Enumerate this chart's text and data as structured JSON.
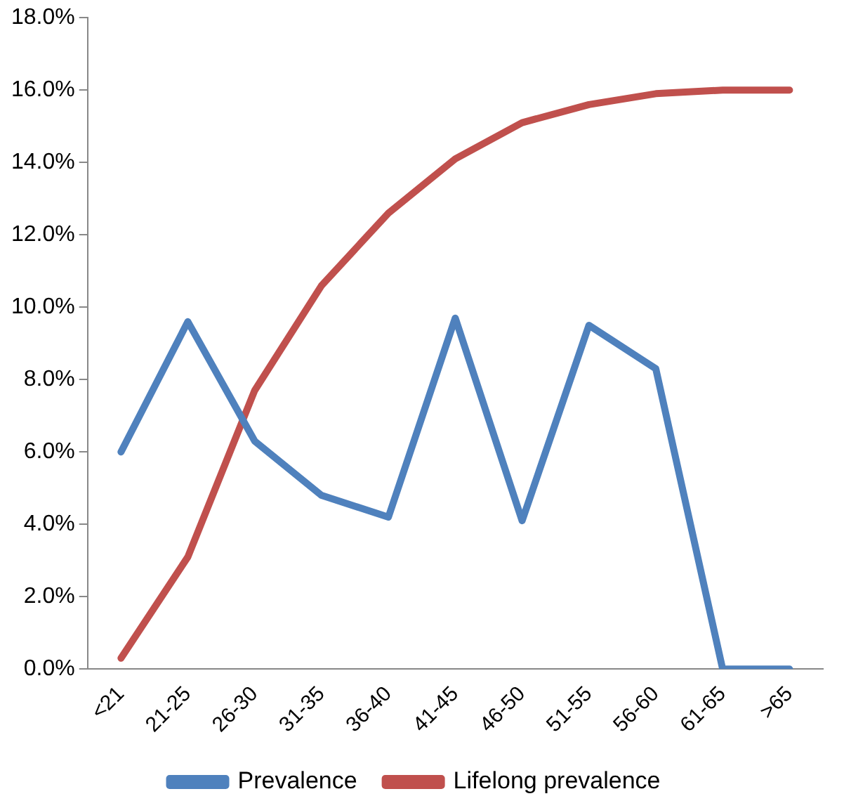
{
  "chart_data": {
    "type": "line",
    "categories": [
      "<21",
      "21-25",
      "26-30",
      "31-35",
      "36-40",
      "41-45",
      "46-50",
      "51-55",
      "56-60",
      "61-65",
      ">65"
    ],
    "series": [
      {
        "name": "Prevalence",
        "color": "#4f81bd",
        "values": [
          6.0,
          9.6,
          6.3,
          4.8,
          4.2,
          9.7,
          4.1,
          9.5,
          8.3,
          0,
          0
        ]
      },
      {
        "name": "Lifelong prevalence",
        "color": "#c0504d",
        "values": [
          0.3,
          3.1,
          7.7,
          10.6,
          12.6,
          14.1,
          15.1,
          15.6,
          15.9,
          16.0,
          16.0
        ]
      }
    ],
    "ylim": [
      0,
      18
    ],
    "yticks": [
      {
        "value": 0,
        "label": "0.0%"
      },
      {
        "value": 2,
        "label": "2.0%"
      },
      {
        "value": 4,
        "label": "4.0%"
      },
      {
        "value": 6,
        "label": "6.0%"
      },
      {
        "value": 8,
        "label": "8.0%"
      },
      {
        "value": 10,
        "label": "10.0%"
      },
      {
        "value": 12,
        "label": "12.0%"
      },
      {
        "value": 14,
        "label": "14.0%"
      },
      {
        "value": 16,
        "label": "16.0%"
      },
      {
        "value": 18,
        "label": "18.0%"
      }
    ],
    "grid": false,
    "legend": "bottom",
    "marker": "none",
    "line_style": "solid"
  }
}
